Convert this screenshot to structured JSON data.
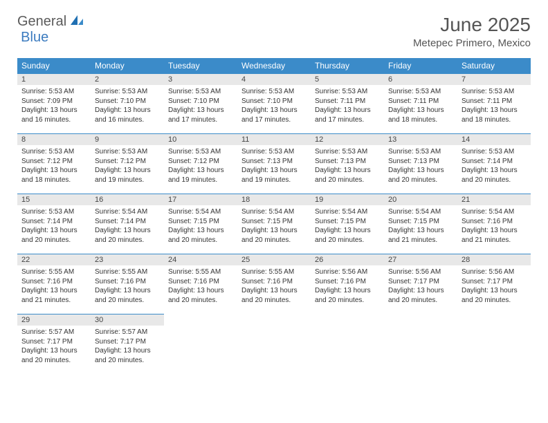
{
  "logo": {
    "general": "General",
    "blue": "Blue"
  },
  "title": "June 2025",
  "location": "Metepec Primero, Mexico",
  "colors": {
    "header_bg": "#3b8bc9",
    "header_text": "#ffffff",
    "daynum_bg": "#e8e8e8",
    "border": "#3b8bc9",
    "logo_blue": "#3b7bbf",
    "logo_gray": "#5a5a5a"
  },
  "dayHeaders": [
    "Sunday",
    "Monday",
    "Tuesday",
    "Wednesday",
    "Thursday",
    "Friday",
    "Saturday"
  ],
  "days": [
    {
      "n": 1,
      "sr": "5:53 AM",
      "ss": "7:09 PM",
      "dl": "13 hours and 16 minutes."
    },
    {
      "n": 2,
      "sr": "5:53 AM",
      "ss": "7:10 PM",
      "dl": "13 hours and 16 minutes."
    },
    {
      "n": 3,
      "sr": "5:53 AM",
      "ss": "7:10 PM",
      "dl": "13 hours and 17 minutes."
    },
    {
      "n": 4,
      "sr": "5:53 AM",
      "ss": "7:10 PM",
      "dl": "13 hours and 17 minutes."
    },
    {
      "n": 5,
      "sr": "5:53 AM",
      "ss": "7:11 PM",
      "dl": "13 hours and 17 minutes."
    },
    {
      "n": 6,
      "sr": "5:53 AM",
      "ss": "7:11 PM",
      "dl": "13 hours and 18 minutes."
    },
    {
      "n": 7,
      "sr": "5:53 AM",
      "ss": "7:11 PM",
      "dl": "13 hours and 18 minutes."
    },
    {
      "n": 8,
      "sr": "5:53 AM",
      "ss": "7:12 PM",
      "dl": "13 hours and 18 minutes."
    },
    {
      "n": 9,
      "sr": "5:53 AM",
      "ss": "7:12 PM",
      "dl": "13 hours and 19 minutes."
    },
    {
      "n": 10,
      "sr": "5:53 AM",
      "ss": "7:12 PM",
      "dl": "13 hours and 19 minutes."
    },
    {
      "n": 11,
      "sr": "5:53 AM",
      "ss": "7:13 PM",
      "dl": "13 hours and 19 minutes."
    },
    {
      "n": 12,
      "sr": "5:53 AM",
      "ss": "7:13 PM",
      "dl": "13 hours and 20 minutes."
    },
    {
      "n": 13,
      "sr": "5:53 AM",
      "ss": "7:13 PM",
      "dl": "13 hours and 20 minutes."
    },
    {
      "n": 14,
      "sr": "5:53 AM",
      "ss": "7:14 PM",
      "dl": "13 hours and 20 minutes."
    },
    {
      "n": 15,
      "sr": "5:53 AM",
      "ss": "7:14 PM",
      "dl": "13 hours and 20 minutes."
    },
    {
      "n": 16,
      "sr": "5:54 AM",
      "ss": "7:14 PM",
      "dl": "13 hours and 20 minutes."
    },
    {
      "n": 17,
      "sr": "5:54 AM",
      "ss": "7:15 PM",
      "dl": "13 hours and 20 minutes."
    },
    {
      "n": 18,
      "sr": "5:54 AM",
      "ss": "7:15 PM",
      "dl": "13 hours and 20 minutes."
    },
    {
      "n": 19,
      "sr": "5:54 AM",
      "ss": "7:15 PM",
      "dl": "13 hours and 20 minutes."
    },
    {
      "n": 20,
      "sr": "5:54 AM",
      "ss": "7:15 PM",
      "dl": "13 hours and 21 minutes."
    },
    {
      "n": 21,
      "sr": "5:54 AM",
      "ss": "7:16 PM",
      "dl": "13 hours and 21 minutes."
    },
    {
      "n": 22,
      "sr": "5:55 AM",
      "ss": "7:16 PM",
      "dl": "13 hours and 21 minutes."
    },
    {
      "n": 23,
      "sr": "5:55 AM",
      "ss": "7:16 PM",
      "dl": "13 hours and 20 minutes."
    },
    {
      "n": 24,
      "sr": "5:55 AM",
      "ss": "7:16 PM",
      "dl": "13 hours and 20 minutes."
    },
    {
      "n": 25,
      "sr": "5:55 AM",
      "ss": "7:16 PM",
      "dl": "13 hours and 20 minutes."
    },
    {
      "n": 26,
      "sr": "5:56 AM",
      "ss": "7:16 PM",
      "dl": "13 hours and 20 minutes."
    },
    {
      "n": 27,
      "sr": "5:56 AM",
      "ss": "7:17 PM",
      "dl": "13 hours and 20 minutes."
    },
    {
      "n": 28,
      "sr": "5:56 AM",
      "ss": "7:17 PM",
      "dl": "13 hours and 20 minutes."
    },
    {
      "n": 29,
      "sr": "5:57 AM",
      "ss": "7:17 PM",
      "dl": "13 hours and 20 minutes."
    },
    {
      "n": 30,
      "sr": "5:57 AM",
      "ss": "7:17 PM",
      "dl": "13 hours and 20 minutes."
    }
  ],
  "labels": {
    "sunrise": "Sunrise:",
    "sunset": "Sunset:",
    "daylight": "Daylight:"
  },
  "layout": {
    "startOffset": 0,
    "cols": 7
  }
}
